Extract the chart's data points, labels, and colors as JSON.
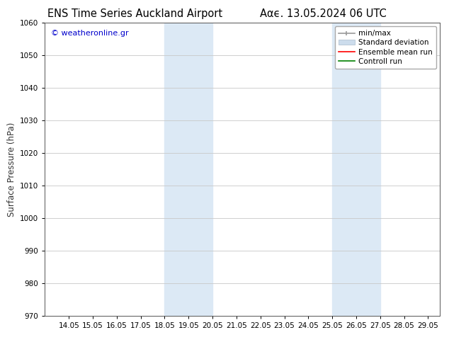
{
  "title_left": "ENS Time Series Auckland Airport",
  "title_right": "Ααϵ. 13.05.2024 06 UTC",
  "ylabel": "Surface Pressure (hPa)",
  "ylim": [
    970,
    1060
  ],
  "yticks": [
    970,
    980,
    990,
    1000,
    1010,
    1020,
    1030,
    1040,
    1050,
    1060
  ],
  "xlim": [
    13.0,
    29.5
  ],
  "xtick_vals": [
    14,
    15,
    16,
    17,
    18,
    19,
    20,
    21,
    22,
    23,
    24,
    25,
    26,
    27,
    28,
    29
  ],
  "xtick_labels": [
    "14.05",
    "15.05",
    "16.05",
    "17.05",
    "18.05",
    "19.05",
    "20.05",
    "21.05",
    "22.05",
    "23.05",
    "24.05",
    "25.05",
    "26.05",
    "27.05",
    "28.05",
    "29.05"
  ],
  "shaded_regions": [
    {
      "x_start": 18.0,
      "x_end": 20.0,
      "color": "#dce9f5"
    },
    {
      "x_start": 25.0,
      "x_end": 27.0,
      "color": "#dce9f5"
    }
  ],
  "watermark_text": "© weatheronline.gr",
  "watermark_color": "#0000cc",
  "bg_color": "#ffffff",
  "grid_color": "#c8c8c8",
  "title_fontsize": 10.5,
  "tick_fontsize": 7.5,
  "ylabel_fontsize": 8.5,
  "legend_fontsize": 7.5
}
